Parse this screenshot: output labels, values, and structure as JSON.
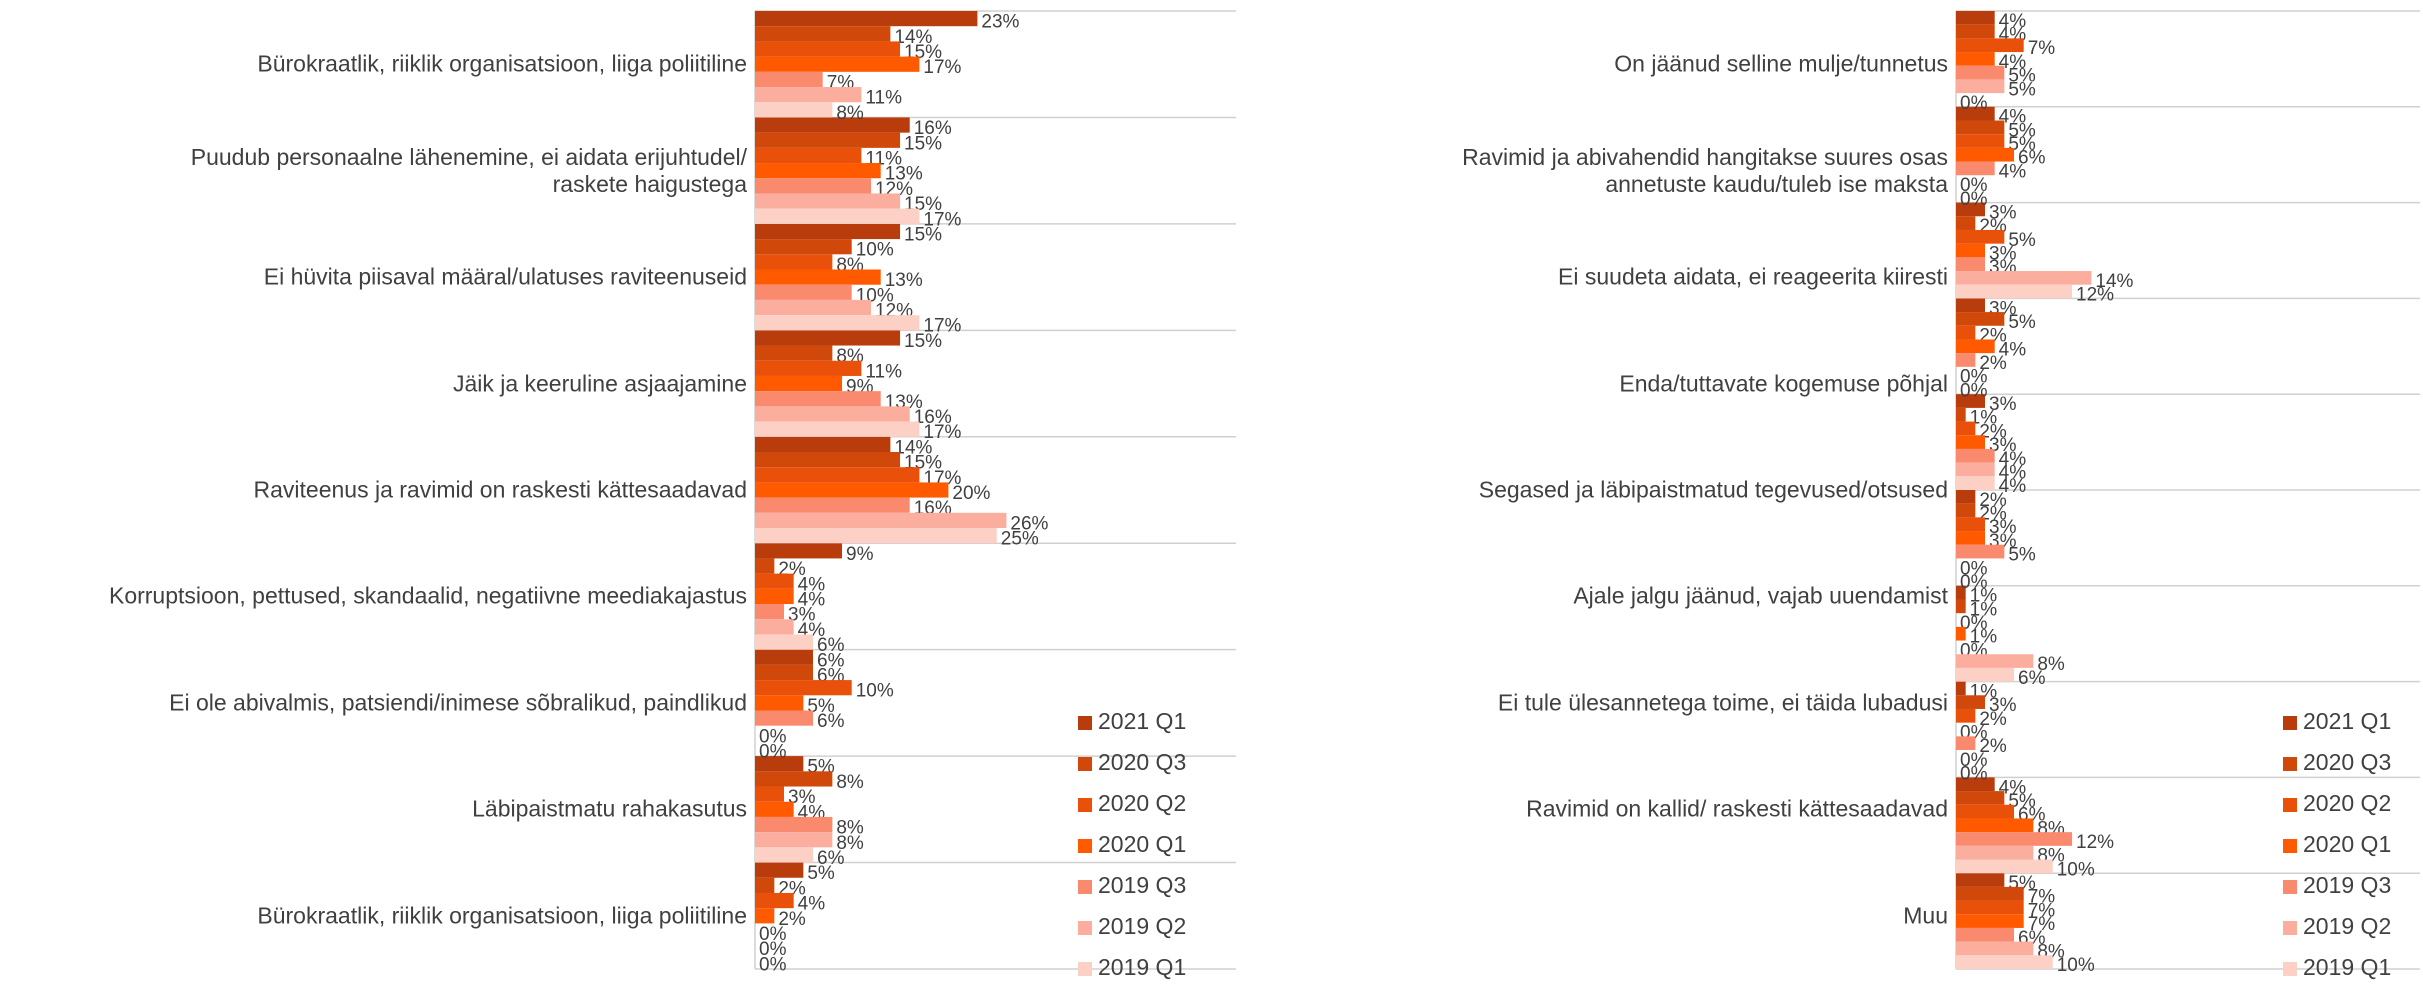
{
  "chart_data": [
    {
      "type": "bar",
      "orientation": "horizontal",
      "categories": [
        "Bürokraatlik, riiklik organisatsioon, liiga poliitiline",
        "Puudub personaalne lähenemine, ei aidata erijuhtudel/\nraskete haigustega",
        "Ei hüvita piisaval määral/ulatuses raviteenuseid",
        "Jäik ja keeruline asjaajamine",
        "Raviteenus ja ravimid on raskesti kättesaadavad",
        "Korruptsioon, pettused, skandaalid, negatiivne meediakajastus",
        "Ei ole abivalmis, patsiendi/inimese sõbralikud, paindlikud",
        "Läbipaistmatu rahakasutus",
        "Bürokraatlik, riiklik organisatsioon, liiga poliitiline"
      ],
      "series": [
        {
          "name": "2021 Q1",
          "color": "#b83c0c",
          "values": [
            23,
            16,
            15,
            15,
            14,
            9,
            6,
            5,
            5
          ],
          "value_labels": [
            "23%",
            "16%",
            "15%",
            "15%",
            "14%",
            "9%",
            "6%",
            "5%",
            "5%"
          ]
        },
        {
          "name": "2020 Q3",
          "color": "#d0480a",
          "values": [
            14,
            15,
            10,
            8,
            15,
            2,
            6,
            8,
            2
          ],
          "value_labels": [
            "14%",
            "15%",
            "10%",
            "8%",
            "15%",
            "2%",
            "6%",
            "8%",
            "2%"
          ]
        },
        {
          "name": "2020 Q2",
          "color": "#e9500a",
          "values": [
            15,
            11,
            8,
            11,
            17,
            4,
            10,
            3,
            4
          ],
          "value_labels": [
            "15%",
            "11%",
            "8%",
            "11%",
            "17%",
            "4%",
            "10%",
            "3%",
            "4%"
          ]
        },
        {
          "name": "2020 Q1",
          "color": "#ff5a00",
          "values": [
            17,
            13,
            13,
            9,
            20,
            4,
            5,
            4,
            2
          ],
          "value_labels": [
            "17%",
            "13%",
            "13%",
            "9%",
            "20%",
            "4%",
            "5%",
            "4%",
            "2%"
          ]
        },
        {
          "name": "2019 Q3",
          "color": "#f98a6e",
          "values": [
            7,
            12,
            10,
            13,
            16,
            3,
            6,
            8,
            0
          ],
          "value_labels": [
            "7%",
            "12%",
            "10%",
            "13%",
            "16%",
            "3%",
            "6%",
            "8%",
            "0%"
          ]
        },
        {
          "name": "2019 Q2",
          "color": "#fbae9e",
          "values": [
            11,
            15,
            12,
            16,
            26,
            4,
            0,
            8,
            0
          ],
          "value_labels": [
            "11%",
            "15%",
            "12%",
            "16%",
            "26%",
            "4%",
            "0%",
            "8%",
            "0%"
          ]
        },
        {
          "name": "2019 Q1",
          "color": "#fdd0c6",
          "values": [
            8,
            17,
            17,
            17,
            25,
            6,
            0,
            6,
            0
          ],
          "value_labels": [
            "8%",
            "17%",
            "17%",
            "17%",
            "25%",
            "6%",
            "0%",
            "6%",
            "0%"
          ]
        }
      ],
      "xlim": [
        0,
        50
      ],
      "legend": "lower right"
    },
    {
      "type": "bar",
      "orientation": "horizontal",
      "categories": [
        "On jäänud selline mulje/tunnetus",
        "Ravimid ja abivahendid hangitakse suures osas\nannetuste kaudu/tuleb ise maksta",
        "Ei suudeta aidata, ei reageerita kiiresti",
        "Enda/tuttavate kogemuse põhjal",
        "Segased ja läbipaistmatud tegevused/otsused",
        "Ajale jalgu jäänud, vajab uuendamist",
        "Ei tule ülesannetega toime, ei täida lubadusi",
        "Ravimid on kallid/ raskesti kättesaadavad",
        "Muu",
        null
      ],
      "series": [
        {
          "name": "2021 Q1",
          "color": "#b83c0c",
          "values": [
            4,
            4,
            3,
            3,
            3,
            2,
            1,
            1,
            4,
            5
          ],
          "value_labels": [
            "4%",
            "4%",
            "3%",
            "3%",
            "3%",
            "2%",
            "1%",
            "1%",
            "4%",
            "5%"
          ]
        },
        {
          "name": "2020 Q3",
          "color": "#d0480a",
          "values": [
            4,
            5,
            2,
            5,
            1,
            2,
            1,
            3,
            5,
            7
          ],
          "value_labels": [
            "4%",
            "5%",
            "2%",
            "5%",
            "1%",
            "2%",
            "1%",
            "3%",
            "5%",
            "7%"
          ]
        },
        {
          "name": "2020 Q2",
          "color": "#e9500a",
          "values": [
            7,
            5,
            5,
            2,
            2,
            3,
            0,
            2,
            6,
            7
          ],
          "value_labels": [
            "7%",
            "5%",
            "5%",
            "2%",
            "2%",
            "3%",
            "0%",
            "2%",
            "6%",
            "7%"
          ]
        },
        {
          "name": "2020 Q1",
          "color": "#ff5a00",
          "values": [
            4,
            6,
            3,
            4,
            3,
            3,
            1,
            0,
            8,
            7
          ],
          "value_labels": [
            "4%",
            "6%",
            "3%",
            "4%",
            "3%",
            "3%",
            "1%",
            "0%",
            "8%",
            "7%"
          ]
        },
        {
          "name": "2019 Q3",
          "color": "#f98a6e",
          "values": [
            5,
            4,
            3,
            2,
            4,
            5,
            0,
            2,
            12,
            6
          ],
          "value_labels": [
            "5%",
            "4%",
            "3%",
            "2%",
            "4%",
            "5%",
            "0%",
            "2%",
            "12%",
            "6%"
          ]
        },
        {
          "name": "2019 Q2",
          "color": "#fbae9e",
          "values": [
            5,
            0,
            14,
            0,
            4,
            0,
            8,
            0,
            8,
            8
          ],
          "value_labels": [
            "5%",
            "0%",
            "14%",
            "0%",
            "4%",
            "0%",
            "8%",
            "0%",
            "8%",
            "8%"
          ]
        },
        {
          "name": "2019 Q1",
          "color": "#fdd0c6",
          "values": [
            0,
            0,
            12,
            0,
            4,
            0,
            6,
            0,
            10,
            10
          ],
          "value_labels": [
            "0%",
            "0%",
            "12%",
            "0%",
            "4%",
            "0%",
            "6%",
            "0%",
            "10%",
            "10%"
          ]
        }
      ],
      "xlim": [
        0,
        50
      ],
      "legend": "lower right"
    }
  ]
}
